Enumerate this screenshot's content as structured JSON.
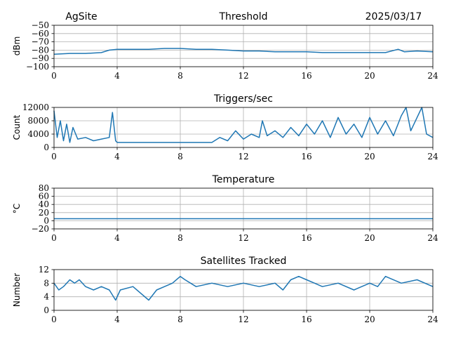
{
  "header": {
    "site": "AgSite",
    "date": "2025/03/17"
  },
  "colors": {
    "series": "#1f77b4"
  },
  "chart_data": [
    {
      "type": "line",
      "title": "Threshold",
      "xlabel": "",
      "ylabel": "dBm",
      "xlim": [
        0,
        24
      ],
      "ylim": [
        -100,
        -50
      ],
      "xticks": [
        0,
        4,
        8,
        12,
        16,
        20,
        24
      ],
      "yticks": [
        -100,
        -90,
        -80,
        -70,
        -60,
        -50
      ],
      "ytick_labels": [
        "−100",
        "−90",
        "−80",
        "−70",
        "−60",
        "−50"
      ],
      "grid": true,
      "x": [
        0,
        1,
        2,
        3,
        3.5,
        4,
        5,
        6,
        7,
        8,
        9,
        10,
        11,
        12,
        13,
        14,
        15,
        16,
        17,
        18,
        19,
        20,
        21,
        21.8,
        22.2,
        23,
        24
      ],
      "y": [
        -85,
        -84,
        -84,
        -83,
        -80,
        -79,
        -79,
        -79,
        -78,
        -78,
        -79,
        -79,
        -80,
        -81,
        -81,
        -82,
        -82,
        -82,
        -83,
        -83,
        -83,
        -83,
        -83,
        -79,
        -82,
        -81,
        -82
      ]
    },
    {
      "type": "line",
      "title": "Triggers/sec",
      "xlabel": "",
      "ylabel": "Count",
      "xlim": [
        0,
        24
      ],
      "ylim": [
        0,
        12000
      ],
      "xticks": [
        0,
        4,
        8,
        12,
        16,
        20,
        24
      ],
      "yticks": [
        0,
        4000,
        8000,
        12000
      ],
      "ytick_labels": [
        "0",
        "4000",
        "8000",
        "12000"
      ],
      "grid": true,
      "x": [
        0,
        0.2,
        0.4,
        0.6,
        0.8,
        1,
        1.2,
        1.5,
        2,
        2.5,
        3,
        3.5,
        3.7,
        3.9,
        4,
        5,
        6,
        7,
        8,
        9,
        10,
        10.5,
        11,
        11.5,
        12,
        12.5,
        13,
        13.2,
        13.5,
        14,
        14.5,
        15,
        15.5,
        16,
        16.5,
        17,
        17.5,
        18,
        18.5,
        19,
        19.5,
        20,
        20.5,
        21,
        21.5,
        22,
        22.3,
        22.6,
        23,
        23.3,
        23.6,
        24
      ],
      "y": [
        11000,
        3000,
        8000,
        2000,
        7000,
        1500,
        6000,
        2500,
        3000,
        2000,
        2500,
        3000,
        10500,
        2000,
        1500,
        1500,
        1500,
        1500,
        1500,
        1500,
        1500,
        3000,
        2000,
        5000,
        2500,
        4000,
        3000,
        8000,
        3500,
        5000,
        3000,
        6000,
        3500,
        7000,
        4000,
        8000,
        3000,
        9000,
        4000,
        7000,
        3000,
        9000,
        4000,
        8000,
        3500,
        9500,
        12000,
        5000,
        9000,
        12000,
        4000,
        3000
      ]
    },
    {
      "type": "line",
      "title": "Temperature",
      "xlabel": "",
      "ylabel": "°C",
      "xlim": [
        0,
        24
      ],
      "ylim": [
        -20,
        80
      ],
      "xticks": [
        0,
        4,
        8,
        12,
        16,
        20,
        24
      ],
      "yticks": [
        -20,
        0,
        20,
        40,
        60,
        80
      ],
      "ytick_labels": [
        "−20",
        "0",
        "20",
        "40",
        "60",
        "80"
      ],
      "grid": true,
      "x": [
        0,
        24
      ],
      "y": [
        5,
        5
      ]
    },
    {
      "type": "line",
      "title": "Satellites Tracked",
      "xlabel": "",
      "ylabel": "Number",
      "xlim": [
        0,
        24
      ],
      "ylim": [
        0,
        12
      ],
      "xticks": [
        0,
        4,
        8,
        12,
        16,
        20,
        24
      ],
      "yticks": [
        0,
        4,
        8,
        12
      ],
      "ytick_labels": [
        "0",
        "4",
        "8",
        "12"
      ],
      "grid": true,
      "x": [
        0,
        0.3,
        0.6,
        1,
        1.3,
        1.6,
        2,
        2.5,
        3,
        3.5,
        3.9,
        4.2,
        5,
        6,
        6.5,
        7,
        7.5,
        8,
        8.3,
        9,
        10,
        11,
        12,
        13,
        14,
        14.5,
        15,
        15.5,
        16,
        16.5,
        17,
        18,
        19,
        20,
        20.5,
        21,
        22,
        23,
        24
      ],
      "y": [
        8,
        6,
        7,
        9,
        8,
        9,
        7,
        6,
        7,
        6,
        3,
        6,
        7,
        3,
        6,
        7,
        8,
        10,
        9,
        7,
        8,
        7,
        8,
        7,
        8,
        6,
        9,
        10,
        9,
        8,
        7,
        8,
        6,
        8,
        7,
        10,
        8,
        9,
        7
      ]
    }
  ]
}
